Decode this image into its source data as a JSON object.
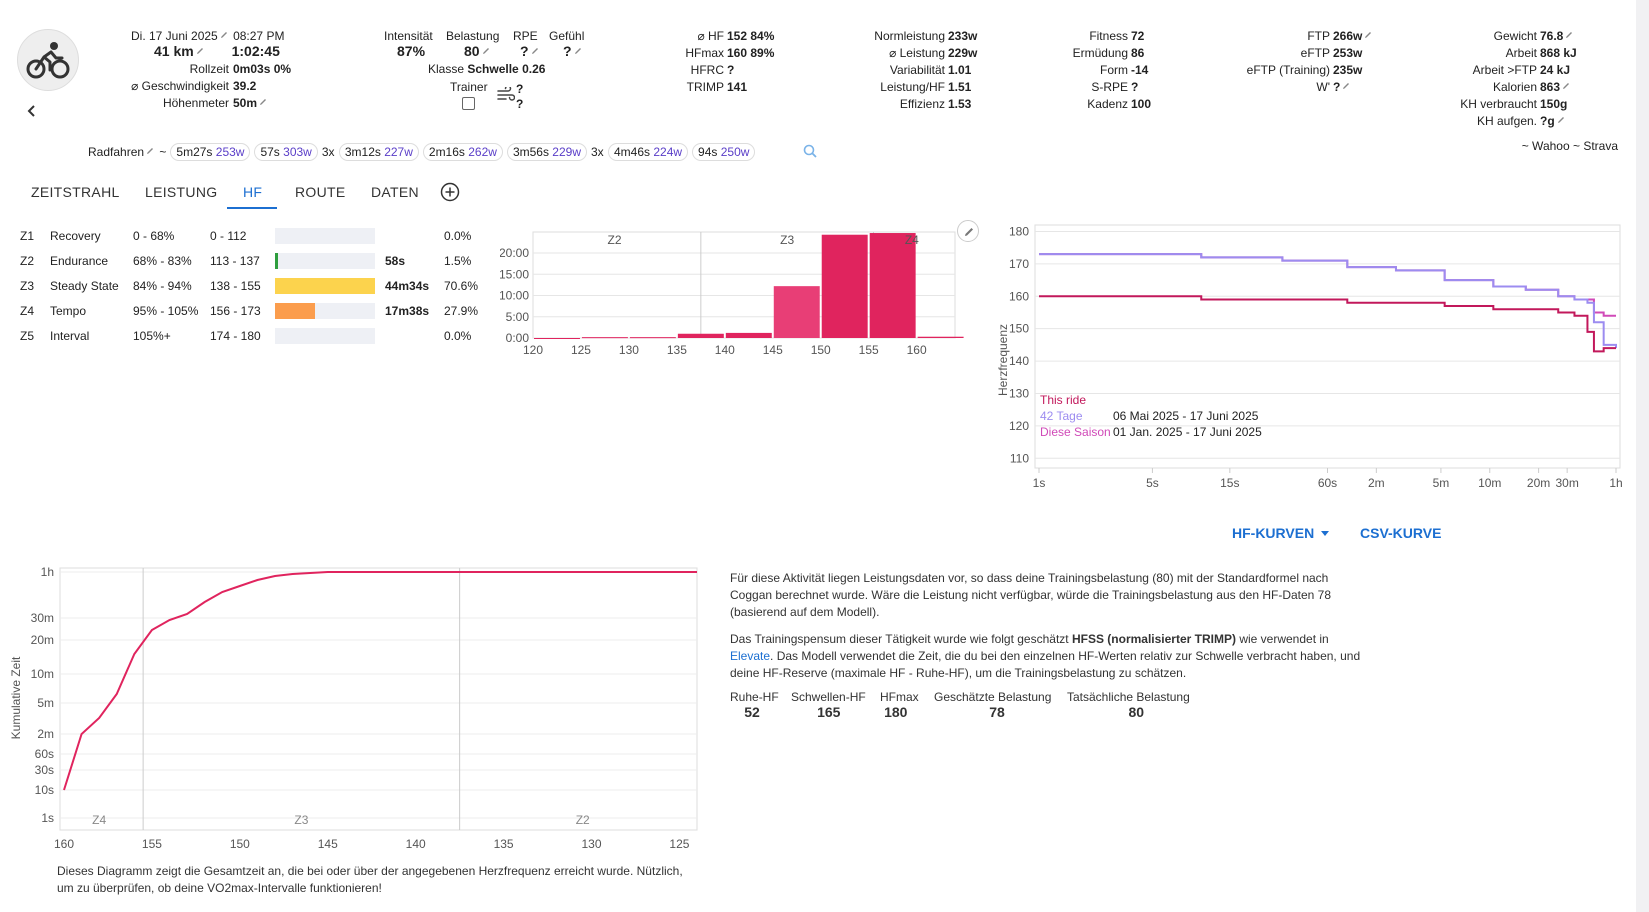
{
  "activity": {
    "date": "Di. 17 Juni 2025",
    "time": "08:27 PM",
    "distance": "41 km",
    "duration": "1:02:45",
    "rollzeit_label": "Rollzeit",
    "rollzeit_value": "0m03s 0%",
    "speed_label": "⌀ Geschwindigkeit",
    "speed_value": "39.2",
    "elevation_label": "Höhenmeter",
    "elevation_value": "50m"
  },
  "effort": {
    "intensity_label": "Intensität",
    "intensity_value": "87%",
    "load_label": "Belastung",
    "load_value": "80",
    "rpe_label": "RPE",
    "rpe_value": "?",
    "feel_label": "Gefühl",
    "feel_value": "?",
    "class_label": "Klasse",
    "class_value": "Schwelle 0.26",
    "trainer_label": "Trainer",
    "trainer_q1": "?",
    "trainer_q2": "?"
  },
  "hr": {
    "avg_label": "⌀ HF",
    "avg_value": "152 84%",
    "max_label": "HFmax",
    "max_value": "160 89%",
    "hfrc_label": "HFRC",
    "hfrc_value": "?",
    "trimp_label": "TRIMP",
    "trimp_value": "141"
  },
  "power": {
    "np_label": "Normleistung",
    "np_value": "233w",
    "avg_label": "⌀ Leistung",
    "avg_value": "229w",
    "var_label": "Variabilität",
    "var_value": "1.01",
    "phr_label": "Leistung/HF",
    "phr_value": "1.51",
    "eff_label": "Effizienz",
    "eff_value": "1.53"
  },
  "fitness": {
    "fitness_label": "Fitness",
    "fitness_value": "72",
    "fatigue_label": "Ermüdung",
    "fatigue_value": "86",
    "form_label": "Form",
    "form_value": "-14",
    "srpe_label": "S-RPE",
    "srpe_value": "?",
    "cadence_label": "Kadenz",
    "cadence_value": "100"
  },
  "ftp": {
    "ftp_label": "FTP",
    "ftp_value": "266w",
    "eftp_label": "eFTP",
    "eftp_value": "253w",
    "eftp_training_label": "eFTP (Training)",
    "eftp_training_value": "235w",
    "wprime_label": "W'",
    "wprime_value": "?"
  },
  "body": {
    "weight_label": "Gewicht",
    "weight_value": "76.8",
    "work_label": "Arbeit",
    "work_value": "868 kJ",
    "work_ftp_label": "Arbeit >FTP",
    "work_ftp_value": "24 kJ",
    "calories_label": "Kalorien",
    "calories_value": "863",
    "carbs_used_label": "KH verbraucht",
    "carbs_used_value": "150g",
    "carbs_in_label": "KH aufgen.",
    "carbs_in_value": "?g"
  },
  "intervals": {
    "sport": "Radfahren",
    "tilde": "~",
    "chips": [
      {
        "prefix": "",
        "time": "5m27s",
        "watts": "253w"
      },
      {
        "prefix": "",
        "time": "57s",
        "watts": "303w"
      },
      {
        "prefix": "3x",
        "time": "3m12s",
        "watts": "227w"
      },
      {
        "prefix": "",
        "time": "2m16s",
        "watts": "262w"
      },
      {
        "prefix": "",
        "time": "3m56s",
        "watts": "229w"
      },
      {
        "prefix": "3x",
        "time": "4m46s",
        "watts": "224w"
      },
      {
        "prefix": "",
        "time": "94s",
        "watts": "250w"
      }
    ],
    "source": "~ Wahoo ~ Strava"
  },
  "tabs": [
    "ZEITSTRAHL",
    "LEISTUNG",
    "HF",
    "ROUTE",
    "DATEN"
  ],
  "zones": [
    {
      "id": "Z1",
      "name": "Recovery",
      "pct": "0 - 68%",
      "bpm": "0 - 112",
      "time": "",
      "share": "0.0%",
      "fill": 0,
      "color": "#9e9e9e"
    },
    {
      "id": "Z2",
      "name": "Endurance",
      "pct": "68% - 83%",
      "bpm": "113 - 137",
      "time": "58s",
      "share": "1.5%",
      "fill": 0.015,
      "color": "#2e9e3e"
    },
    {
      "id": "Z3",
      "name": "Steady State",
      "pct": "84% - 94%",
      "bpm": "138 - 155",
      "time": "44m34s",
      "share": "70.6%",
      "fill": 1.0,
      "color": "#fcd34d"
    },
    {
      "id": "Z4",
      "name": "Tempo",
      "pct": "95% - 105%",
      "bpm": "156 - 173",
      "time": "17m38s",
      "share": "27.9%",
      "fill": 0.395,
      "color": "#fb9d4d"
    },
    {
      "id": "Z5",
      "name": "Interval",
      "pct": "105%+",
      "bpm": "174 - 180",
      "time": "",
      "share": "0.0%",
      "fill": 0,
      "color": "#e53935"
    }
  ],
  "chart_data": [
    {
      "type": "bar",
      "zone_labels": [
        "Z2",
        "Z3",
        "Z4"
      ],
      "x": [
        120,
        125,
        130,
        135,
        140,
        145,
        150,
        155,
        160
      ],
      "x_ticks": [
        "120",
        "125",
        "130",
        "135",
        "140",
        "145",
        "150",
        "155",
        "160"
      ],
      "y_ticks": [
        "0:00",
        "5:00",
        "10:00",
        "15:00",
        "20:00"
      ],
      "ylim": [
        0,
        24
      ],
      "values": [
        0,
        0.2,
        0.2,
        1.0,
        1.2,
        12.2,
        24.3,
        24.7,
        0.3
      ],
      "title": "",
      "xlabel": "",
      "ylabel": ""
    },
    {
      "type": "line",
      "ylabel": "Herzfrequenz",
      "y_ticks": [
        110,
        120,
        130,
        140,
        150,
        160,
        170,
        180
      ],
      "ylim": [
        107,
        182
      ],
      "x_ticks": [
        "1s",
        "5s",
        "15s",
        "60s",
        "2m",
        "5m",
        "10m",
        "20m",
        "30m",
        "1h"
      ],
      "series": [
        {
          "name": "This ride",
          "color": "#c2185b",
          "values": [
            160,
            160,
            159,
            159,
            158,
            158,
            157,
            156,
            156,
            155,
            154,
            149,
            143,
            144,
            144
          ]
        },
        {
          "name": "42 Tage",
          "color": "#9c8cf0",
          "values": [
            173,
            173,
            172,
            171,
            169,
            168,
            165,
            163,
            162,
            160,
            159,
            158,
            152,
            145,
            144
          ]
        },
        {
          "name": "Diese Saison",
          "color": "#d04ab8",
          "values": [
            173,
            173,
            172,
            171,
            169,
            168,
            165,
            163,
            162,
            160,
            159,
            159,
            155,
            154,
            154
          ]
        }
      ],
      "legend": [
        {
          "name": "This ride",
          "range": ""
        },
        {
          "name": "42 Tage",
          "range": "06 Mai 2025  - 17 Juni 2025"
        },
        {
          "name": "Diese Saison",
          "range": "01 Jan. 2025 - 17 Juni 2025"
        }
      ]
    },
    {
      "type": "line",
      "ylabel": "Kumulative Zeit",
      "y_ticks": [
        "1h",
        "30m",
        "20m",
        "10m",
        "5m",
        "2m",
        "60s",
        "30s",
        "10s",
        "1s"
      ],
      "x_ticks": [
        "160",
        "155",
        "150",
        "145",
        "140",
        "135",
        "130",
        "125"
      ],
      "zone_labels": [
        "Z4",
        "Z3",
        "Z2"
      ],
      "series": [
        {
          "name": "",
          "color": "#e0245e",
          "x": [
            160,
            159,
            158,
            157,
            156,
            155,
            154,
            153,
            152,
            151,
            150,
            149,
            148,
            147,
            146,
            145,
            140,
            135,
            130,
            125,
            124
          ],
          "values": [
            "10s",
            "2m",
            "3.5m",
            "7m",
            "16m",
            "24m",
            "29m",
            "33m",
            "40m",
            "46m",
            "51m",
            "55m",
            "58m",
            "60m",
            "61m",
            "62m",
            "62m",
            "62m",
            "62m",
            "62m",
            "62m"
          ]
        }
      ]
    }
  ],
  "curve_buttons": {
    "hf_curves": "HF-KURVEN",
    "csv_curve": "CSV-KURVE"
  },
  "caption": "Dieses Diagramm zeigt die Gesamtzeit an, die bei oder über der angegebenen Herzfrequenz erreicht wurde. Nützlich, um zu überprüfen, ob deine VO2max-Intervalle funktionieren!",
  "explanation": {
    "p1": "Für diese Aktivität liegen Leistungsdaten vor, so dass deine Trainingsbelastung (80) mit der Standardformel nach Coggan berechnet wurde. Wäre die Leistung nicht verfügbar, würde die Trainingsbelastung aus den HF-Daten 78 (basierend auf dem Modell).",
    "p2_a": "Das Trainingspensum dieser Tätigkeit wurde wie folgt geschätzt ",
    "p2_b": "HFSS (normalisierter TRIMP)",
    "p2_c": " wie verwendet in ",
    "p2_link": "Elevate",
    "p2_d": ". Das Modell verwendet die Zeit, die du bei den einzelnen HF-Werten relativ zur Schwelle verbracht haben, und deine HF-Reserve (maximale HF - Ruhe-HF), um die Trainingsbelastung zu schätzen.",
    "cols": [
      {
        "label": "Ruhe-HF",
        "value": "52"
      },
      {
        "label": "Schwellen-HF",
        "value": "165"
      },
      {
        "label": "HFmax",
        "value": "180"
      },
      {
        "label": "Geschätzte Belastung",
        "value": "78"
      },
      {
        "label": "Tatsächliche Belastung",
        "value": "80"
      }
    ]
  },
  "colors": {
    "accent": "#1c6fd1",
    "zone_bar": "#e0245e",
    "bg": "#f1f1f3"
  },
  "icons": [
    "bike-icon",
    "back-icon",
    "pencil-icon",
    "search-icon",
    "add-tab-icon",
    "wind-icon",
    "chevron-down-icon"
  ]
}
